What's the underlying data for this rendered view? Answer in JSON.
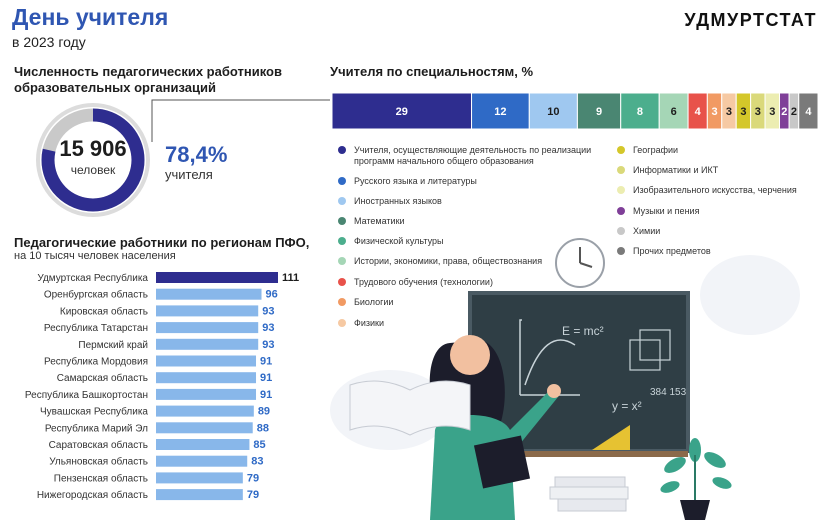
{
  "header": {
    "title": "День учителя",
    "subtitle": "в 2023 году",
    "brand": "УДМУРТСТАТ"
  },
  "donut": {
    "title_line1": "Численность педагогических работников",
    "title_line2": "образовательных организаций",
    "value": "15 906",
    "unit": "человек",
    "share_value": "78,4%",
    "share_label": "учителя",
    "share_fraction": 0.784
  },
  "colors": {
    "dark_blue": "#2e2d8f",
    "blue": "#2f6ac6",
    "light_blue": "#9fc8f0",
    "dark_teal": "#4a8672",
    "teal": "#4cae8d",
    "light_green": "#a5d6b6",
    "red": "#e8524a",
    "orange": "#f19a63",
    "peach": "#f6c9a3",
    "yellow": "#d4c72a",
    "olive": "#dad97a",
    "light_yellow": "#ecedb1",
    "purple": "#7f3f98",
    "light_gray": "#c8c8c8",
    "gray": "#7a7a7a",
    "bar_blue": "#88b7ea",
    "bar_navy": "#2e2d8f"
  },
  "chart_data": [
    {
      "type": "bar",
      "orientation": "horizontal",
      "title": "Педагогические работники по регионам ПФО,",
      "subtitle": "на 10 тысяч человек населения",
      "categories": [
        "Удмуртская Республика",
        "Оренбургская область",
        "Кировская область",
        "Республика Татарстан",
        "Пермский край",
        "Республика Мордовия",
        "Самарская область",
        "Республика Башкортостан",
        "Чувашская Республика",
        "Республика Марий Эл",
        "Саратовская область",
        "Ульяновская область",
        "Пензенская область",
        "Нижегородская область"
      ],
      "values": [
        111,
        96,
        93,
        93,
        93,
        91,
        91,
        91,
        89,
        88,
        85,
        83,
        79,
        79
      ],
      "xlim": [
        0,
        111
      ],
      "highlight_index": 0
    },
    {
      "type": "bar",
      "orientation": "stacked-100",
      "title": "Учителя по специальностям, %",
      "segments": [
        {
          "label": "Учителя, осуществляющие деятельность по реализации программ начального общего образования",
          "value": 29,
          "color": "#2e2d8f"
        },
        {
          "label": "Русского языка и литературы",
          "value": 12,
          "color": "#2f6ac6"
        },
        {
          "label": "Иностранных языков",
          "value": 10,
          "color": "#9fc8f0"
        },
        {
          "label": "Математики",
          "value": 9,
          "color": "#4a8672"
        },
        {
          "label": "Физической культуры",
          "value": 8,
          "color": "#4cae8d"
        },
        {
          "label": "Истории, экономики, права, обществознания",
          "value": 6,
          "color": "#a5d6b6"
        },
        {
          "label": "Трудового обучения (технологии)",
          "value": 4,
          "color": "#e8524a"
        },
        {
          "label": "Биологии",
          "value": 3,
          "color": "#f19a63"
        },
        {
          "label": "Физики",
          "value": 3,
          "color": "#f6c9a3"
        },
        {
          "label": "Географии",
          "value": 3,
          "color": "#d4c72a"
        },
        {
          "label": "Информатики и ИКТ",
          "value": 3,
          "color": "#dad97a"
        },
        {
          "label": "Изобразительного искусства, черчения",
          "value": 3,
          "color": "#ecedb1"
        },
        {
          "label": "Музыки и пения",
          "value": 2,
          "color": "#7f3f98"
        },
        {
          "label": "Химии",
          "value": 2,
          "color": "#c8c8c8"
        },
        {
          "label": "Прочих предметов",
          "value": 4,
          "color": "#7a7a7a"
        }
      ],
      "legend": {
        "column1": [
          "Учителя, осуществляющие деятельность по реализации программ начального общего образования",
          "Русского языка и литературы",
          "Иностранных языков",
          "Математики",
          "Физической культуры",
          "Истории, экономики, права, обществознания",
          "Трудового обучения (технологии)",
          "Биологии",
          "Физики"
        ],
        "column2": [
          "Географии",
          "Информатики и ИКТ",
          "Изобразительного искусства, черчения",
          "Музыки и пения",
          "Химии",
          "Прочих предметов"
        ]
      }
    }
  ],
  "illustration": {
    "board_formula_1": "E = mc²",
    "board_formula_2": "y = x²",
    "board_numbers": "384 153"
  }
}
